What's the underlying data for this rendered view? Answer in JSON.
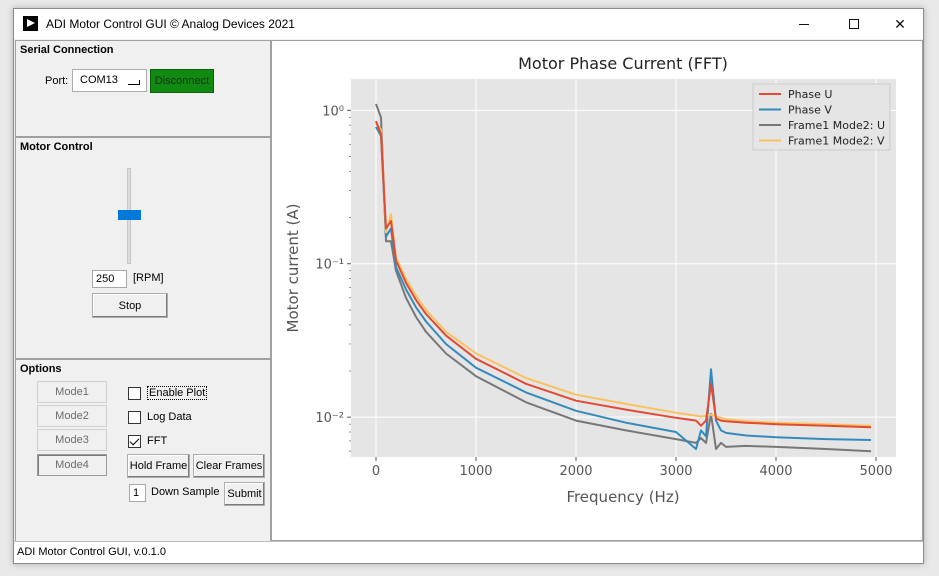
{
  "window": {
    "title": "ADI Motor Control GUI © Analog Devices 2021",
    "minimize": "─",
    "maximize": "☐",
    "close": "✕"
  },
  "serial": {
    "title": "Serial Connection",
    "port_label": "Port:",
    "port_value": "COM13",
    "disconnect_label": "Disconnect",
    "disconnect_color": "#108a10"
  },
  "motor": {
    "title": "Motor Control",
    "speed_value": "250",
    "speed_unit": "[RPM]",
    "slider_fraction": 0.5,
    "stop_label": "Stop"
  },
  "options": {
    "title": "Options",
    "modes": [
      "Mode1",
      "Mode2",
      "Mode3",
      "Mode4"
    ],
    "enable_plot": "Enable Plot",
    "enable_plot_checked": false,
    "log_data": "Log Data",
    "log_data_checked": false,
    "fft": "FFT",
    "fft_checked": true,
    "hold_frame": "Hold Frame",
    "clear_frames": "Clear Frames",
    "down_sample_value": "1",
    "down_sample_label": "Down Sample",
    "submit": "Submit"
  },
  "status": {
    "text": "ADI Motor Control GUI, v.0.1.0"
  },
  "chart_data": {
    "type": "line",
    "title": "Motor Phase Current (FFT)",
    "xlabel": "Frequency (Hz)",
    "ylabel": "Motor current (A)",
    "yscale": "log",
    "xlim": [
      -250,
      5200
    ],
    "ylim": [
      0.0055,
      1.6
    ],
    "xticks": [
      0,
      1000,
      2000,
      3000,
      4000,
      5000
    ],
    "xtick_labels": [
      "0",
      "1000",
      "2000",
      "3000",
      "4000",
      "5000"
    ],
    "yticks": [
      1,
      0.1,
      0.01
    ],
    "ytick_labels": [
      "10⁰",
      "10⁻¹",
      "10⁻²"
    ],
    "grid": true,
    "legend_position": "top-right",
    "series": [
      {
        "name": "Phase U",
        "color": "#e24a33",
        "x": [
          0,
          50,
          100,
          150,
          200,
          300,
          400,
          500,
          700,
          1000,
          1500,
          2000,
          2500,
          3000,
          3200,
          3250,
          3300,
          3350,
          3400,
          3450,
          3500,
          3700,
          4000,
          4500,
          4950
        ],
        "y": [
          0.85,
          0.7,
          0.17,
          0.19,
          0.105,
          0.075,
          0.058,
          0.047,
          0.034,
          0.024,
          0.0165,
          0.0128,
          0.0112,
          0.0099,
          0.0095,
          0.0088,
          0.0095,
          0.0165,
          0.0098,
          0.0095,
          0.0094,
          0.0092,
          0.009,
          0.0088,
          0.0086
        ]
      },
      {
        "name": "Phase V",
        "color": "#348abd",
        "x": [
          0,
          50,
          100,
          150,
          200,
          300,
          400,
          500,
          700,
          1000,
          1500,
          2000,
          2500,
          3000,
          3200,
          3250,
          3300,
          3350,
          3400,
          3450,
          3500,
          3700,
          4000,
          4500,
          4950
        ],
        "y": [
          0.78,
          0.68,
          0.15,
          0.17,
          0.095,
          0.068,
          0.052,
          0.042,
          0.03,
          0.021,
          0.0145,
          0.011,
          0.0092,
          0.008,
          0.0062,
          0.0082,
          0.0075,
          0.0205,
          0.0095,
          0.0082,
          0.0079,
          0.0076,
          0.0074,
          0.0072,
          0.0071
        ]
      },
      {
        "name": "Frame1 Mode2: U",
        "color": "#777777",
        "x": [
          0,
          50,
          100,
          150,
          200,
          300,
          400,
          500,
          700,
          1000,
          1500,
          2000,
          2500,
          3000,
          3200,
          3250,
          3300,
          3350,
          3400,
          3450,
          3500,
          3700,
          4000,
          4500,
          4950
        ],
        "y": [
          1.1,
          0.9,
          0.14,
          0.14,
          0.09,
          0.06,
          0.045,
          0.036,
          0.026,
          0.0185,
          0.0125,
          0.0095,
          0.0082,
          0.0072,
          0.0068,
          0.0073,
          0.0068,
          0.0105,
          0.0062,
          0.0068,
          0.0064,
          0.0065,
          0.0064,
          0.0062,
          0.006
        ]
      },
      {
        "name": "Frame1 Mode2: V",
        "color": "#fbc15e",
        "x": [
          0,
          50,
          100,
          150,
          200,
          300,
          400,
          500,
          700,
          1000,
          1500,
          2000,
          2500,
          3000,
          3200,
          3250,
          3300,
          3350,
          3400,
          3450,
          3500,
          3700,
          4000,
          4500,
          4950
        ],
        "y": [
          0.82,
          0.75,
          0.16,
          0.21,
          0.11,
          0.08,
          0.062,
          0.05,
          0.036,
          0.026,
          0.018,
          0.014,
          0.0122,
          0.0107,
          0.0102,
          0.0101,
          0.0102,
          0.0104,
          0.0101,
          0.0099,
          0.0097,
          0.0094,
          0.0092,
          0.009,
          0.0088
        ]
      }
    ]
  }
}
